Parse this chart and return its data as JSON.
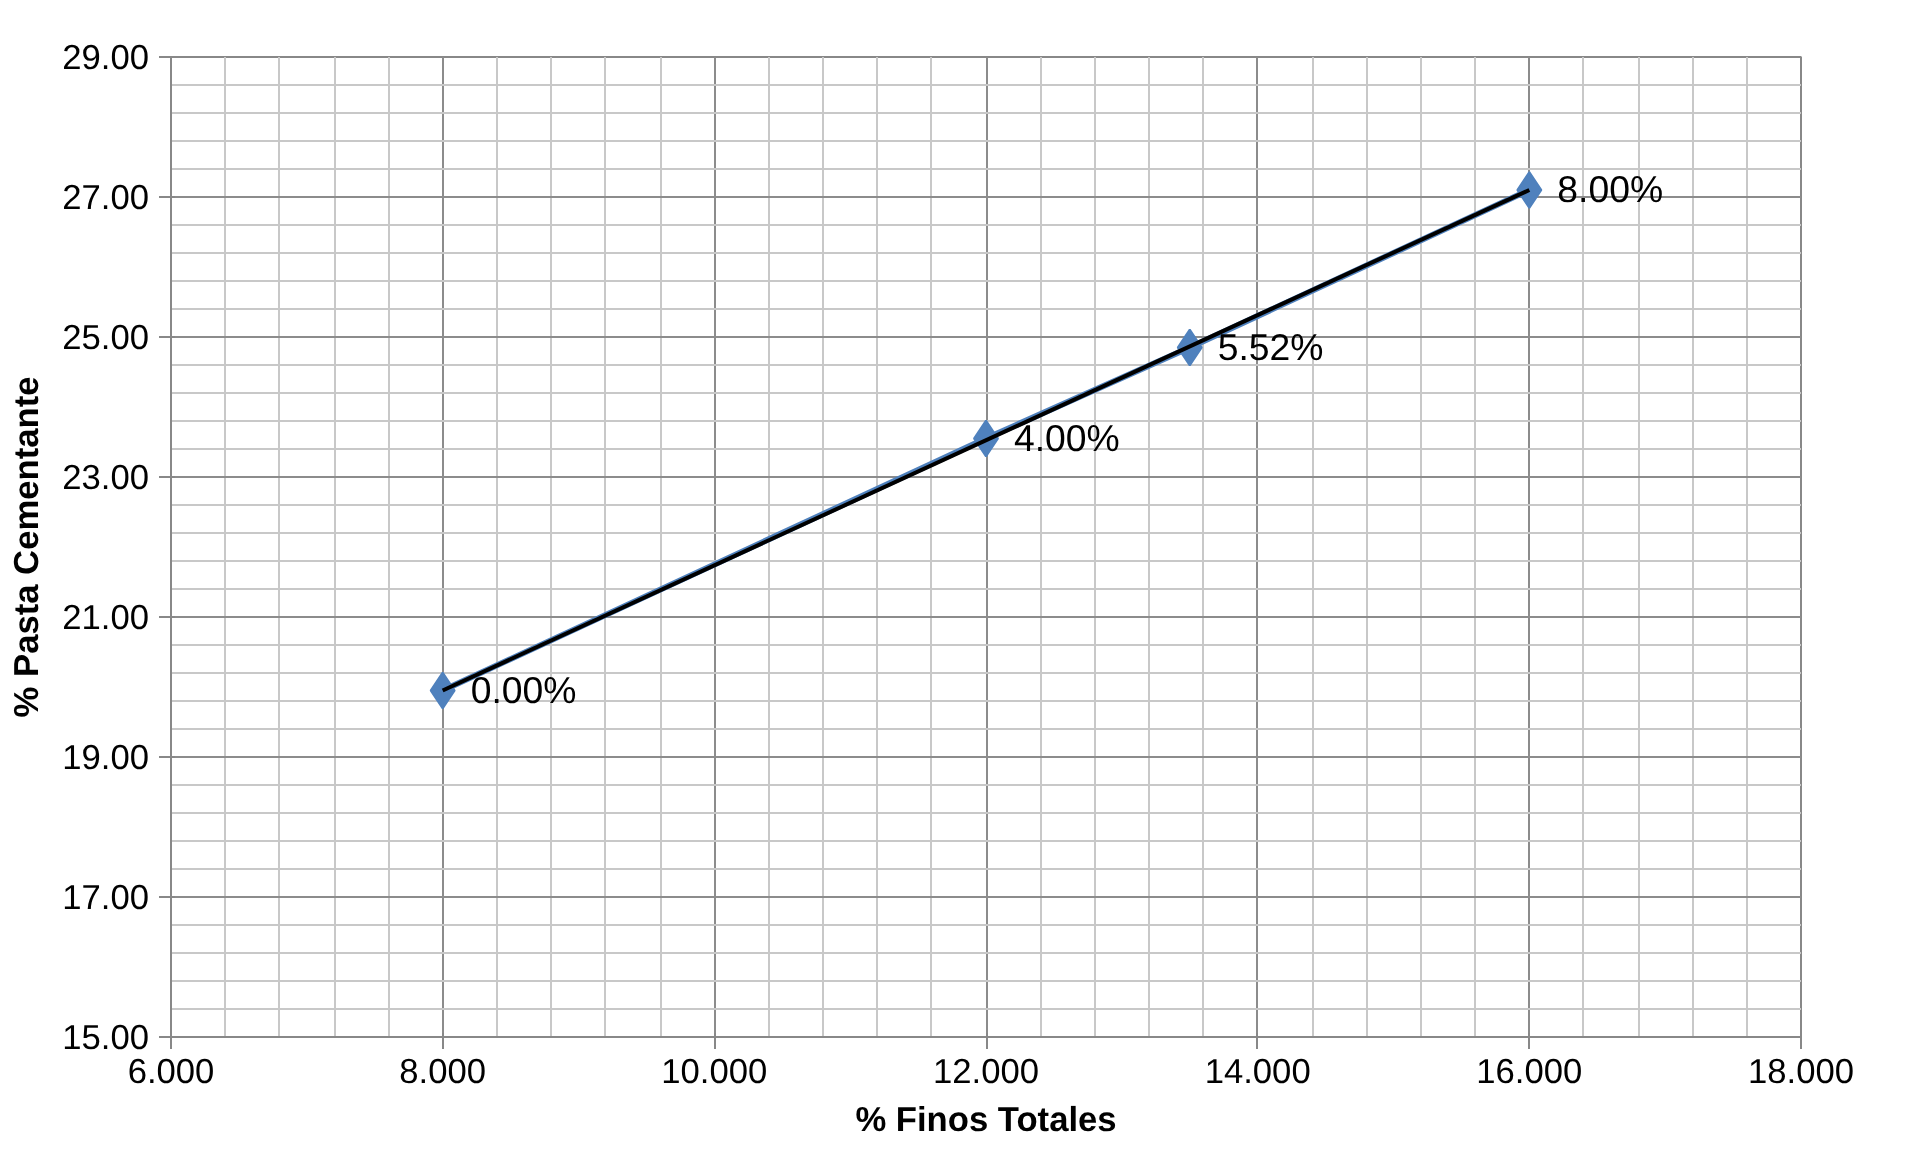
{
  "chart_data": {
    "type": "line",
    "xlabel": "% Finos Totales",
    "ylabel": "% Pasta Cementante",
    "xlim": [
      6,
      18
    ],
    "xticks": [
      {
        "value": 6,
        "label": "6.000"
      },
      {
        "value": 8,
        "label": "8.000"
      },
      {
        "value": 10,
        "label": "10.000"
      },
      {
        "value": 12,
        "label": "12.000"
      },
      {
        "value": 14,
        "label": "14.000"
      },
      {
        "value": 16,
        "label": "16.000"
      },
      {
        "value": 18,
        "label": "18.000"
      }
    ],
    "ylim": [
      15,
      29
    ],
    "yticks": [
      {
        "value": 15,
        "label": "15.00"
      },
      {
        "value": 17,
        "label": "17.00"
      },
      {
        "value": 19,
        "label": "19.00"
      },
      {
        "value": 21,
        "label": "21.00"
      },
      {
        "value": 23,
        "label": "23.00"
      },
      {
        "value": 25,
        "label": "25.00"
      },
      {
        "value": 27,
        "label": "27.00"
      },
      {
        "value": 29,
        "label": "29.00"
      }
    ],
    "grid": true,
    "annotations": [
      {
        "text": "0.00%",
        "x": 8,
        "y": 19.95
      },
      {
        "text": "4.00%",
        "x": 12,
        "y": 23.55
      },
      {
        "text": "5.52%",
        "x": 13.5,
        "y": 24.85
      },
      {
        "text": "8.00%",
        "x": 16,
        "y": 27.1
      }
    ],
    "series": [
      {
        "color": "#4f81bd",
        "marker": "diamond",
        "x": [
          8,
          12,
          13.5,
          16
        ],
        "values": [
          19.95,
          23.55,
          24.85,
          27.1
        ]
      },
      {
        "color": "#000000",
        "marker": "none",
        "x": [
          8,
          16
        ],
        "values": [
          19.95,
          27.1
        ]
      }
    ]
  }
}
